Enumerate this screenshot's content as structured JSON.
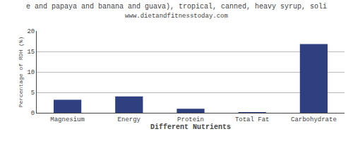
{
  "chart_data": {
    "type": "bar",
    "title": "e and papaya and banana and guava), tropical, canned, heavy syrup, soli",
    "subtitle": "www.dietandfitnesstoday.com",
    "xlabel": "Different Nutrients",
    "ylabel": "Percentage of RDH (%)",
    "categories": [
      "Magnesium",
      "Energy",
      "Protein",
      "Total Fat",
      "Carbohydrate"
    ],
    "values": [
      3.2,
      4.0,
      1.0,
      0.05,
      16.8
    ],
    "color": "#2e4080",
    "ylim": [
      0,
      20
    ],
    "yticks": [
      0,
      5,
      10,
      15,
      20
    ],
    "grid": true
  }
}
